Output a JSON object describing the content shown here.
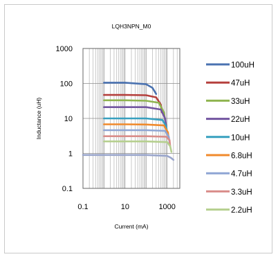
{
  "chart_data": {
    "type": "line",
    "title": "LQH3NPN_M0",
    "xlabel": "Current (mA)",
    "ylabel": "Inductance (uH)",
    "xscale": "log",
    "yscale": "log",
    "xlim": [
      0.1,
      4000
    ],
    "ylim": [
      0.1,
      1000
    ],
    "xticks": [
      "0.1",
      "10",
      "1000"
    ],
    "yticks": [
      "0.1",
      "1",
      "10",
      "100",
      "1000"
    ],
    "grid": true,
    "legend_position": "right",
    "series": [
      {
        "name": "100uH",
        "color": "#4a72b0",
        "x": [
          1,
          10,
          100,
          200,
          250,
          300
        ],
        "y": [
          105,
          105,
          95,
          75,
          60,
          50
        ]
      },
      {
        "name": "47uH",
        "color": "#b5403d",
        "x": [
          1,
          10,
          100,
          300,
          500,
          550
        ],
        "y": [
          47,
          47,
          46,
          40,
          25,
          15
        ]
      },
      {
        "name": "33uH",
        "color": "#8fb44f",
        "x": [
          1,
          10,
          100,
          400,
          700,
          800
        ],
        "y": [
          33,
          33,
          32,
          28,
          15,
          9
        ]
      },
      {
        "name": "22uH",
        "color": "#7255a0",
        "x": [
          1,
          10,
          100,
          500,
          800,
          900
        ],
        "y": [
          21,
          21,
          21,
          18,
          10,
          6
        ]
      },
      {
        "name": "10uH",
        "color": "#37a0bf",
        "x": [
          1,
          10,
          100,
          600,
          900,
          1000
        ],
        "y": [
          10,
          10,
          10,
          9,
          6,
          4
        ]
      },
      {
        "name": "6.8uH",
        "color": "#f08a2c",
        "x": [
          1,
          10,
          100,
          700,
          1100,
          1200
        ],
        "y": [
          6.8,
          6.8,
          6.7,
          6.3,
          4,
          2.5
        ]
      },
      {
        "name": "4.7uH",
        "color": "#8ea5d4",
        "x": [
          1,
          10,
          100,
          800,
          1200,
          1300
        ],
        "y": [
          4.6,
          4.6,
          4.6,
          4.4,
          3,
          2
        ]
      },
      {
        "name": "3.3uH",
        "color": "#d98d8a",
        "x": [
          1,
          10,
          100,
          900,
          1300,
          1400
        ],
        "y": [
          3.1,
          3.1,
          3.1,
          3,
          2.4,
          1.6
        ]
      },
      {
        "name": "2.2uH",
        "color": "#b5cf8e",
        "x": [
          1,
          10,
          100,
          1000,
          1400,
          1600
        ],
        "y": [
          2.2,
          2.2,
          2.2,
          2.1,
          1.6,
          1.1
        ]
      },
      {
        "name": "",
        "color": "#9aa6cc",
        "x": [
          0.1,
          1,
          10,
          100,
          1000,
          1500,
          2000
        ],
        "y": [
          0.9,
          0.9,
          0.9,
          0.9,
          0.85,
          0.75,
          0.65
        ]
      }
    ]
  }
}
